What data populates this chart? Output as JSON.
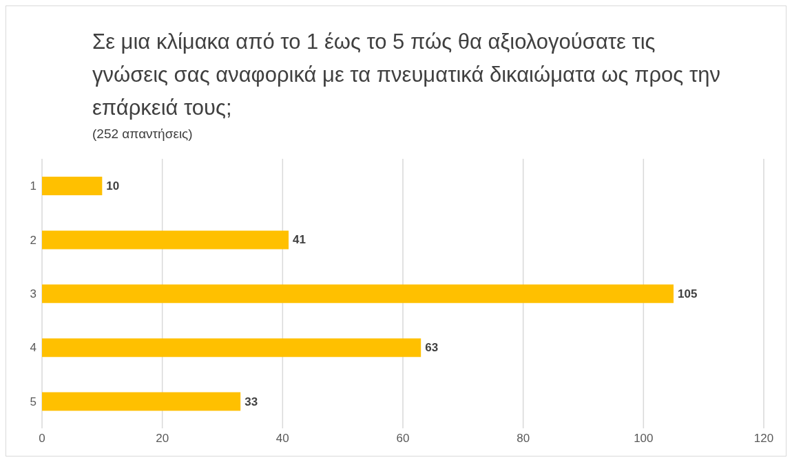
{
  "chart_data": {
    "type": "bar",
    "orientation": "horizontal",
    "title": "Σε μια κλίμακα από το 1 έως το 5 πώς θα αξιολογούσατε τις γνώσεις σας αναφορικά με τα πνευματικά δικαιώματα ως προς την επάρκειά τους;",
    "subtitle": "(252 απαντήσεις)",
    "categories": [
      "1",
      "2",
      "3",
      "4",
      "5"
    ],
    "values": [
      10,
      41,
      105,
      63,
      33
    ],
    "color": "#ffc000",
    "xlim": [
      0,
      120
    ],
    "xticks": [
      0,
      20,
      40,
      60,
      80,
      100,
      120
    ],
    "grid": "x",
    "data_labels": true
  }
}
